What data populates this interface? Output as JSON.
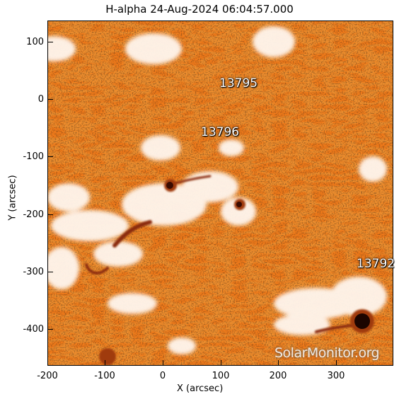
{
  "title": "H-alpha 24-Aug-2024 06:04:57.000",
  "axes": {
    "xlabel": "X (arcsec)",
    "ylabel": "Y (arcsec)",
    "xlim": [
      -200,
      400
    ],
    "ylim": [
      -460,
      135
    ],
    "xticks": [
      "-200",
      "-100",
      "0",
      "100",
      "200",
      "300"
    ],
    "yticks": [
      "100",
      "0",
      "-100",
      "-200",
      "-300",
      "-400"
    ]
  },
  "regions": [
    {
      "label": "13795"
    },
    {
      "label": "13796"
    },
    {
      "label": "13792"
    }
  ],
  "watermark": "SolarMonitor.org",
  "colors": {
    "photosphere": "#f07a1a",
    "plage": "#fff6ee",
    "sunspot": "#3a0c02",
    "filament": "#8a2a08"
  }
}
